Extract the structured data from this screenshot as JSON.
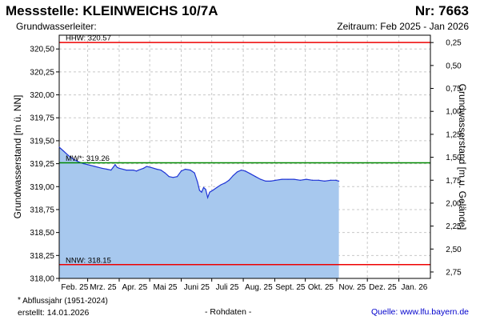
{
  "header": {
    "title": "Messstelle: KLEINWEICHS 10/7A",
    "station_nr": "Nr: 7663",
    "aquifer": "Grundwasserleiter:",
    "period": "Zeitraum: Feb 2025 - Jan 2026"
  },
  "footer": {
    "footnote": "Abflussjahr (1951-2024)",
    "created": "erstellt:  14.01.2026",
    "raw": "- Rohdaten -",
    "source": "Quelle: www.lfu.bayern.de"
  },
  "colors": {
    "fill": "#a7c8ee",
    "line": "#1f35d6",
    "extreme_lines": "#ee0000",
    "mean_line": "#008800",
    "grid": "#c8c8c8"
  },
  "chart_data": {
    "type": "area",
    "ylabel_left": "Grundwasserstand [m ü. NN]",
    "ylabel_right": "Grundwasserstand [m u. Gelände]",
    "ylim": [
      318.0,
      320.65
    ],
    "yticks_left": [
      "318,00",
      "318,25",
      "318,50",
      "318,75",
      "319,00",
      "319,25",
      "319,50",
      "319,75",
      "320,00",
      "320,25",
      "320,50"
    ],
    "yticks_right": [
      "0,25",
      "0,50",
      "0,75",
      "1,00",
      "1,25",
      "1,50",
      "1,75",
      "2,00",
      "2,25",
      "2,50",
      "2,75"
    ],
    "right_axis_offset": 320.82,
    "xlim": [
      "2025-02-01",
      "2026-02-01"
    ],
    "xticks": [
      {
        "date": "2025-02-01",
        "label": "Feb. 25"
      },
      {
        "date": "2025-03-01",
        "label": "Mrz. 25"
      },
      {
        "date": "2025-04-01",
        "label": "Apr. 25"
      },
      {
        "date": "2025-05-01",
        "label": "Mai 25"
      },
      {
        "date": "2025-06-01",
        "label": "Juni 25"
      },
      {
        "date": "2025-07-01",
        "label": "Juli 25"
      },
      {
        "date": "2025-08-01",
        "label": "Aug. 25"
      },
      {
        "date": "2025-09-01",
        "label": "Sept. 25"
      },
      {
        "date": "2025-10-01",
        "label": "Okt. 25"
      },
      {
        "date": "2025-11-01",
        "label": "Nov. 25"
      },
      {
        "date": "2025-12-01",
        "label": "Dez. 25"
      },
      {
        "date": "2026-01-01",
        "label": "Jan. 26"
      }
    ],
    "reference_lines": [
      {
        "key": "hhw",
        "label": "HHW: 320.57",
        "value": 320.57,
        "color": "#ee0000"
      },
      {
        "key": "mw",
        "label": "MW*: 319.26",
        "value": 319.26,
        "color": "#008800"
      },
      {
        "key": "nnw",
        "label": "NNW: 318.15",
        "value": 318.15,
        "color": "#ee0000"
      }
    ],
    "grid": true,
    "series": [
      {
        "points": [
          [
            "2025-02-01",
            319.43
          ],
          [
            "2025-02-05",
            319.39
          ],
          [
            "2025-02-10",
            319.34
          ],
          [
            "2025-02-15",
            319.3
          ],
          [
            "2025-02-20",
            319.27
          ],
          [
            "2025-02-25",
            319.25
          ],
          [
            "2025-03-01",
            319.24
          ],
          [
            "2025-03-08",
            319.22
          ],
          [
            "2025-03-15",
            319.2
          ],
          [
            "2025-03-20",
            319.19
          ],
          [
            "2025-03-24",
            319.18
          ],
          [
            "2025-03-26",
            319.21
          ],
          [
            "2025-03-28",
            319.24
          ],
          [
            "2025-03-30",
            319.21
          ],
          [
            "2025-04-01",
            319.2
          ],
          [
            "2025-04-08",
            319.18
          ],
          [
            "2025-04-15",
            319.18
          ],
          [
            "2025-04-18",
            319.17
          ],
          [
            "2025-04-20",
            319.18
          ],
          [
            "2025-04-25",
            319.2
          ],
          [
            "2025-04-28",
            319.22
          ],
          [
            "2025-05-02",
            319.21
          ],
          [
            "2025-05-08",
            319.19
          ],
          [
            "2025-05-12",
            319.18
          ],
          [
            "2025-05-16",
            319.15
          ],
          [
            "2025-05-20",
            319.11
          ],
          [
            "2025-05-24",
            319.1
          ],
          [
            "2025-05-28",
            319.11
          ],
          [
            "2025-06-01",
            319.17
          ],
          [
            "2025-06-05",
            319.19
          ],
          [
            "2025-06-10",
            319.18
          ],
          [
            "2025-06-14",
            319.15
          ],
          [
            "2025-06-17",
            319.05
          ],
          [
            "2025-06-19",
            318.96
          ],
          [
            "2025-06-21",
            318.94
          ],
          [
            "2025-06-23",
            318.99
          ],
          [
            "2025-06-25",
            318.97
          ],
          [
            "2025-06-27",
            318.88
          ],
          [
            "2025-06-29",
            318.94
          ],
          [
            "2025-07-02",
            318.96
          ],
          [
            "2025-07-06",
            318.99
          ],
          [
            "2025-07-10",
            319.02
          ],
          [
            "2025-07-14",
            319.04
          ],
          [
            "2025-07-18",
            319.07
          ],
          [
            "2025-07-22",
            319.12
          ],
          [
            "2025-07-26",
            319.16
          ],
          [
            "2025-07-30",
            319.18
          ],
          [
            "2025-08-03",
            319.17
          ],
          [
            "2025-08-08",
            319.14
          ],
          [
            "2025-08-13",
            319.11
          ],
          [
            "2025-08-18",
            319.08
          ],
          [
            "2025-08-23",
            319.06
          ],
          [
            "2025-08-28",
            319.06
          ],
          [
            "2025-09-02",
            319.07
          ],
          [
            "2025-09-08",
            319.08
          ],
          [
            "2025-09-14",
            319.08
          ],
          [
            "2025-09-20",
            319.08
          ],
          [
            "2025-09-26",
            319.07
          ],
          [
            "2025-10-02",
            319.08
          ],
          [
            "2025-10-08",
            319.07
          ],
          [
            "2025-10-14",
            319.07
          ],
          [
            "2025-10-20",
            319.06
          ],
          [
            "2025-10-26",
            319.07
          ],
          [
            "2025-10-31",
            319.07
          ],
          [
            "2025-11-03",
            319.06
          ]
        ]
      }
    ]
  }
}
